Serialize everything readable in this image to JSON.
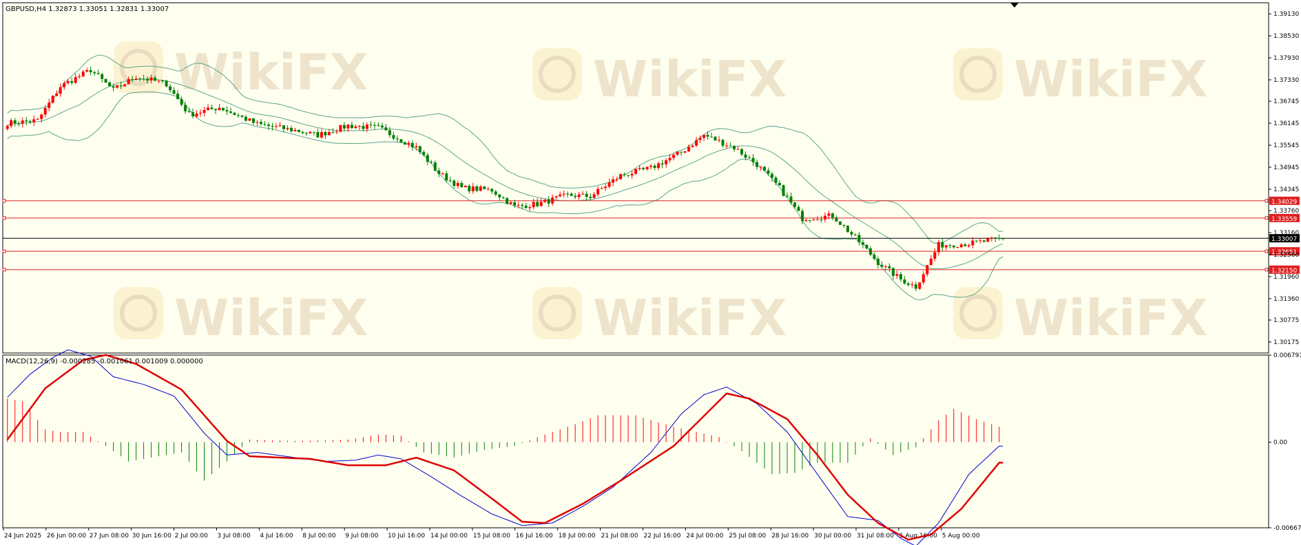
{
  "colors": {
    "background": "#fffff0",
    "frame": "#000000",
    "bull": "#ff0000",
    "bear": "#008000",
    "bands": "#5aa48a",
    "level": "#e02020",
    "price_line": "#000000",
    "macd_main": "#0000cc",
    "macd_signal": "#dd0000",
    "watermark": "#e9dcc0"
  },
  "watermark": {
    "text": "WikiFX",
    "icon": "wikifx-lion-logo-icon"
  },
  "chart_data": {
    "type": "candlestick",
    "symbol_info": "GBPUSD,H4  1.32873 1.33051 1.32831 1.33007",
    "price_axis": {
      "range": [
        1.29875,
        1.39433
      ],
      "ticks": [
        "1.39130",
        "1.38530",
        "1.37930",
        "1.37330",
        "1.36745",
        "1.36145",
        "1.35545",
        "1.34945",
        "1.34345",
        "1.33760",
        "1.33160",
        "1.32560",
        "1.31960",
        "1.31360",
        "1.30775",
        "1.30175"
      ]
    },
    "x_labels": [
      "24 Jun 2025",
      "26 Jun 00:00",
      "27 Jun 08:00",
      "30 Jun 16:00",
      "2 Jul 00:00",
      "3 Jul 08:00",
      "4 Jul 16:00",
      "8 Jul 00:00",
      "9 Jul 08:00",
      "10 Jul 16:00",
      "14 Jul 00:00",
      "15 Jul 08:00",
      "16 Jul 16:00",
      "18 Jul 00:00",
      "21 Jul 08:00",
      "22 Jul 16:00",
      "24 Jul 00:00",
      "25 Jul 08:00",
      "28 Jul 16:00",
      "30 Jul 00:00",
      "31 Jul 08:00",
      "1 Aug 16:00",
      "5 Aug 00:00"
    ],
    "levels": [
      {
        "label": "1.34029",
        "value": 1.34029
      },
      {
        "label": "1.33559",
        "value": 1.33559
      },
      {
        "label": "1.32651",
        "value": 1.32651
      },
      {
        "label": "1.32150",
        "value": 1.3215
      }
    ],
    "current_price": {
      "label": "1.33007",
      "value": 1.33007
    },
    "close_path": [
      [
        0,
        1.3615
      ],
      [
        8,
        1.3622
      ],
      [
        14,
        1.3715
      ],
      [
        22,
        1.376
      ],
      [
        28,
        1.3705
      ],
      [
        34,
        1.3742
      ],
      [
        42,
        1.3722
      ],
      [
        48,
        1.3638
      ],
      [
        56,
        1.3658
      ],
      [
        66,
        1.3612
      ],
      [
        76,
        1.3595
      ],
      [
        82,
        1.3582
      ],
      [
        90,
        1.3608
      ],
      [
        98,
        1.3602
      ],
      [
        108,
        1.3548
      ],
      [
        114,
        1.3478
      ],
      [
        120,
        1.3438
      ],
      [
        128,
        1.3432
      ],
      [
        134,
        1.3387
      ],
      [
        140,
        1.3394
      ],
      [
        148,
        1.3418
      ],
      [
        154,
        1.3415
      ],
      [
        162,
        1.3472
      ],
      [
        170,
        1.3492
      ],
      [
        178,
        1.3535
      ],
      [
        184,
        1.3582
      ],
      [
        192,
        1.3548
      ],
      [
        198,
        1.3502
      ],
      [
        204,
        1.3438
      ],
      [
        210,
        1.3355
      ],
      [
        218,
        1.3362
      ],
      [
        224,
        1.3302
      ],
      [
        230,
        1.3235
      ],
      [
        236,
        1.3188
      ],
      [
        240,
        1.3168
      ],
      [
        246,
        1.3282
      ],
      [
        254,
        1.3286
      ],
      [
        262,
        1.3298
      ]
    ],
    "macd": {
      "label": "MACD(12,26,9) -0.000285 -0.001061 0.001009 0.000000",
      "range": [
        -0.006674,
        0.006791
      ],
      "ticks": [
        "0.006791",
        "0.00",
        "-0.006674"
      ],
      "main_path": [
        [
          0,
          0.0035
        ],
        [
          6,
          0.0053
        ],
        [
          12,
          0.0066
        ],
        [
          16,
          0.0072
        ],
        [
          22,
          0.0067
        ],
        [
          28,
          0.0051
        ],
        [
          36,
          0.0045
        ],
        [
          44,
          0.0036
        ],
        [
          52,
          0.0007
        ],
        [
          58,
          -0.001
        ],
        [
          66,
          -0.0008
        ],
        [
          76,
          -0.0012
        ],
        [
          84,
          -0.0015
        ],
        [
          92,
          -0.0014
        ],
        [
          98,
          -0.001
        ],
        [
          104,
          -0.0013
        ],
        [
          112,
          -0.0027
        ],
        [
          120,
          -0.0042
        ],
        [
          128,
          -0.0056
        ],
        [
          136,
          -0.0065
        ],
        [
          144,
          -0.0063
        ],
        [
          152,
          -0.005
        ],
        [
          160,
          -0.0035
        ],
        [
          170,
          -0.0008
        ],
        [
          178,
          0.0022
        ],
        [
          184,
          0.0037
        ],
        [
          190,
          0.0043
        ],
        [
          198,
          0.003
        ],
        [
          206,
          0.0008
        ],
        [
          214,
          -0.0025
        ],
        [
          222,
          -0.0058
        ],
        [
          230,
          -0.0061
        ],
        [
          236,
          -0.0075
        ],
        [
          240,
          -0.0081
        ],
        [
          246,
          -0.0063
        ],
        [
          254,
          -0.0025
        ],
        [
          262,
          -0.0003
        ]
      ],
      "signal_path": [
        [
          0,
          0.0002
        ],
        [
          10,
          0.0042
        ],
        [
          20,
          0.0064
        ],
        [
          26,
          0.0068
        ],
        [
          34,
          0.0061
        ],
        [
          46,
          0.0041
        ],
        [
          58,
          0.0001
        ],
        [
          64,
          -0.0011
        ],
        [
          80,
          -0.0013
        ],
        [
          90,
          -0.0018
        ],
        [
          100,
          -0.0018
        ],
        [
          108,
          -0.0012
        ],
        [
          118,
          -0.0022
        ],
        [
          128,
          -0.0044
        ],
        [
          136,
          -0.0062
        ],
        [
          142,
          -0.0063
        ],
        [
          152,
          -0.0048
        ],
        [
          162,
          -0.003
        ],
        [
          176,
          -0.0003
        ],
        [
          190,
          0.0038
        ],
        [
          196,
          0.0034
        ],
        [
          206,
          0.0018
        ],
        [
          214,
          -0.001
        ],
        [
          222,
          -0.0041
        ],
        [
          230,
          -0.0063
        ],
        [
          238,
          -0.0076
        ],
        [
          244,
          -0.0072
        ],
        [
          252,
          -0.0052
        ],
        [
          262,
          -0.0016
        ]
      ],
      "histogram_path": [
        [
          0,
          0.0034
        ],
        [
          4,
          0.0032
        ],
        [
          10,
          0.001
        ],
        [
          14,
          0.0008
        ],
        [
          20,
          0.0008
        ],
        [
          26,
          -0.0003
        ],
        [
          32,
          -0.0015
        ],
        [
          38,
          -0.0012
        ],
        [
          46,
          -0.0008
        ],
        [
          52,
          -0.003
        ],
        [
          58,
          -0.0015
        ],
        [
          64,
          0.0002
        ],
        [
          76,
          0.0001
        ],
        [
          90,
          0.0002
        ],
        [
          98,
          0.0006
        ],
        [
          104,
          0.0005
        ],
        [
          110,
          -0.0008
        ],
        [
          118,
          -0.0012
        ],
        [
          126,
          -0.0006
        ],
        [
          134,
          -0.0003
        ],
        [
          142,
          0.0006
        ],
        [
          150,
          0.0014
        ],
        [
          156,
          0.0021
        ],
        [
          166,
          0.0021
        ],
        [
          176,
          0.0012
        ],
        [
          182,
          0.0008
        ],
        [
          188,
          0.0004
        ],
        [
          194,
          -0.0007
        ],
        [
          202,
          -0.0025
        ],
        [
          208,
          -0.0024
        ],
        [
          214,
          -0.0016
        ],
        [
          222,
          -0.0016
        ],
        [
          228,
          0.0003
        ],
        [
          234,
          -0.001
        ],
        [
          240,
          -0.0004
        ],
        [
          246,
          0.0017
        ],
        [
          250,
          0.0026
        ],
        [
          256,
          0.0018
        ],
        [
          262,
          0.0012
        ]
      ]
    }
  }
}
